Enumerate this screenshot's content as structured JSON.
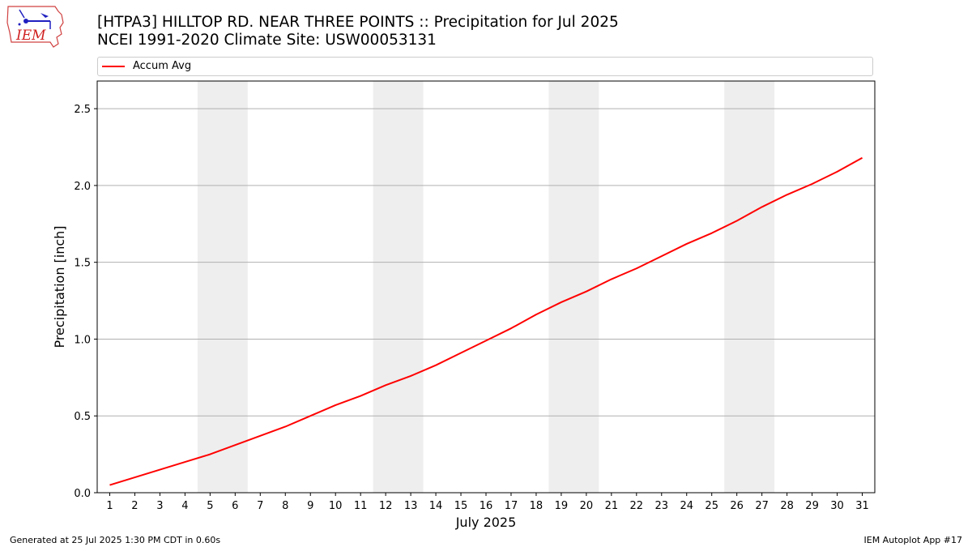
{
  "header": {
    "title_line1": "[HTPA3] HILLTOP RD. NEAR THREE POINTS :: Precipitation for Jul 2025",
    "title_line2": "NCEI 1991-2020 Climate Site: USW00053131",
    "logo_text": "IEM"
  },
  "footer": {
    "left": "Generated at 25 Jul 2025 1:30 PM CDT in 0.60s",
    "right": "IEM Autoplot App #17"
  },
  "colors": {
    "line": "#ff0000",
    "weekend_band": "#eeeeee",
    "grid": "#b0b0b0"
  },
  "chart_data": {
    "type": "line",
    "xlabel": "July 2025",
    "ylabel": "Precipitation [inch]",
    "x": [
      1,
      2,
      3,
      4,
      5,
      6,
      7,
      8,
      9,
      10,
      11,
      12,
      13,
      14,
      15,
      16,
      17,
      18,
      19,
      20,
      21,
      22,
      23,
      24,
      25,
      26,
      27,
      28,
      29,
      30,
      31
    ],
    "xlim": [
      0.5,
      31.5
    ],
    "ylim": [
      0,
      2.68
    ],
    "yticks": [
      0.0,
      0.5,
      1.0,
      1.5,
      2.0,
      2.5
    ],
    "ytick_labels": [
      "0.0",
      "0.5",
      "1.0",
      "1.5",
      "2.0",
      "2.5"
    ],
    "grid": "horizontal",
    "legend_position": "top",
    "shaded_ranges": [
      [
        4.5,
        6.5
      ],
      [
        11.5,
        13.5
      ],
      [
        18.5,
        20.5
      ],
      [
        25.5,
        27.5
      ]
    ],
    "series": [
      {
        "name": "Accum Avg",
        "values": [
          0.05,
          0.1,
          0.15,
          0.2,
          0.25,
          0.31,
          0.37,
          0.43,
          0.5,
          0.57,
          0.63,
          0.7,
          0.76,
          0.83,
          0.91,
          0.99,
          1.07,
          1.16,
          1.24,
          1.31,
          1.39,
          1.46,
          1.54,
          1.62,
          1.69,
          1.77,
          1.86,
          1.94,
          2.01,
          2.09,
          2.18
        ]
      }
    ]
  }
}
